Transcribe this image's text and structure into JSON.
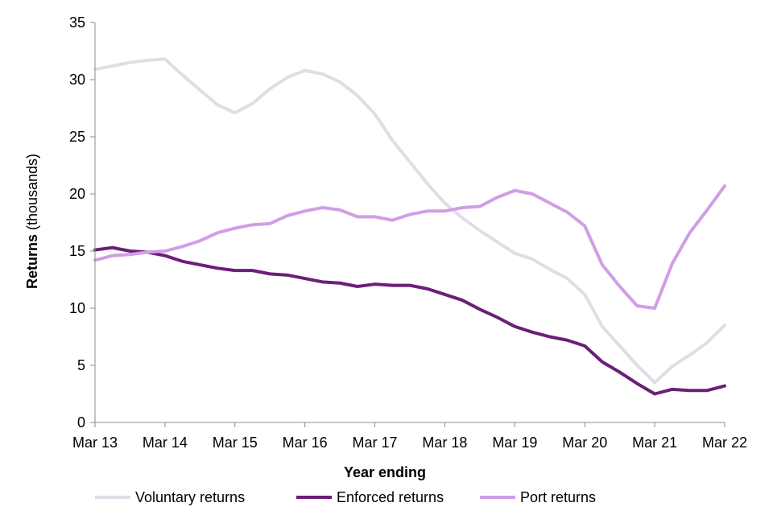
{
  "chart_data": {
    "type": "line",
    "title": "",
    "xlabel": "Year ending",
    "ylabel_bold": "Returns",
    "ylabel_rest": " (thousands)",
    "ylim": [
      0,
      35
    ],
    "yticks": [
      0,
      5,
      10,
      15,
      20,
      25,
      30,
      35
    ],
    "xlim": [
      0,
      36
    ],
    "xticks": [
      {
        "label": "Mar 13",
        "index": 0
      },
      {
        "label": "Mar 14",
        "index": 4
      },
      {
        "label": "Mar 15",
        "index": 8
      },
      {
        "label": "Mar 16",
        "index": 12
      },
      {
        "label": "Mar 17",
        "index": 16
      },
      {
        "label": "Mar 18",
        "index": 20
      },
      {
        "label": "Mar 19",
        "index": 24
      },
      {
        "label": "Mar 20",
        "index": 28
      },
      {
        "label": "Mar 21",
        "index": 32
      },
      {
        "label": "Mar 22",
        "index": 36
      }
    ],
    "grid": false,
    "legend_position": "bottom",
    "series": [
      {
        "name": "Voluntary returns",
        "color": "#e0dde6",
        "values": [
          30.9,
          31.2,
          31.5,
          31.7,
          31.8,
          30.4,
          29.1,
          27.8,
          27.1,
          27.9,
          29.2,
          30.2,
          30.8,
          30.5,
          29.8,
          28.6,
          27.0,
          24.7,
          22.8,
          20.9,
          19.2,
          17.9,
          16.8,
          15.8,
          14.8,
          14.3,
          13.4,
          12.6,
          11.2,
          8.4,
          6.7,
          5.0,
          3.5,
          4.9,
          5.9,
          7.0,
          8.5
        ]
      },
      {
        "name": "Enforced returns",
        "color": "#6b1f78",
        "values": [
          15.1,
          15.3,
          15.0,
          14.9,
          14.6,
          14.1,
          13.8,
          13.5,
          13.3,
          13.3,
          13.0,
          12.9,
          12.6,
          12.3,
          12.2,
          11.9,
          12.1,
          12.0,
          12.0,
          11.7,
          11.2,
          10.7,
          9.9,
          9.2,
          8.4,
          7.9,
          7.5,
          7.2,
          6.7,
          5.3,
          4.4,
          3.4,
          2.5,
          2.9,
          2.8,
          2.8,
          3.2
        ]
      },
      {
        "name": "Port returns",
        "color": "#d09ee6",
        "values": [
          14.2,
          14.6,
          14.7,
          14.9,
          15.0,
          15.4,
          15.9,
          16.6,
          17.0,
          17.3,
          17.4,
          18.1,
          18.5,
          18.8,
          18.6,
          18.0,
          18.0,
          17.7,
          18.2,
          18.5,
          18.5,
          18.8,
          18.9,
          19.7,
          20.3,
          20.0,
          19.2,
          18.4,
          17.2,
          13.8,
          11.9,
          10.2,
          10.0,
          13.9,
          16.6,
          18.6,
          20.7
        ]
      }
    ]
  }
}
